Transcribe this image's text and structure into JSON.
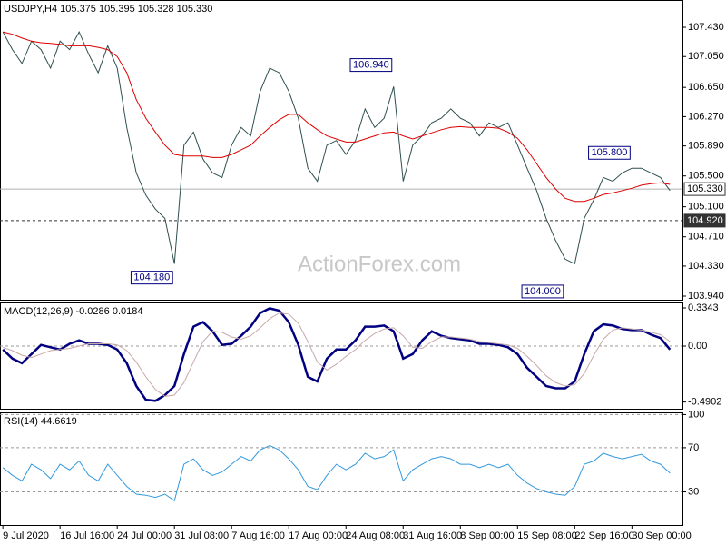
{
  "chart_data": [
    {
      "type": "line",
      "title": "USDJPY,H4  105.375 105.395 105.328 105.330",
      "watermark": "ActionForex.com",
      "xlim": [
        -0.3,
        71.3
      ],
      "ylim": [
        103.893,
        107.784
      ],
      "yticks": [
        {
          "value": 107.43,
          "label": "107.430"
        },
        {
          "value": 107.05,
          "label": "107.050"
        },
        {
          "value": 106.65,
          "label": "106.650"
        },
        {
          "value": 106.27,
          "label": "106.270"
        },
        {
          "value": 105.89,
          "label": "105.890"
        },
        {
          "value": 105.5,
          "label": "105.500"
        },
        {
          "value": 105.1,
          "label": "105.100"
        },
        {
          "value": 104.71,
          "label": "104.710"
        },
        {
          "value": 104.33,
          "label": "104.330"
        },
        {
          "value": 103.94,
          "label": "103.940"
        }
      ],
      "series": [
        {
          "color": "#2f4f4f",
          "width": 1,
          "values": [
            107.37,
            107.14,
            106.96,
            107.25,
            107.14,
            106.9,
            107.25,
            107.14,
            107.37,
            107.08,
            106.84,
            107.19,
            106.9,
            106.13,
            105.54,
            105.25,
            105.07,
            104.95,
            104.36,
            105.9,
            106.07,
            105.72,
            105.54,
            105.48,
            105.9,
            106.13,
            106.02,
            106.6,
            106.9,
            106.84,
            106.6,
            106.25,
            105.6,
            105.43,
            105.9,
            105.96,
            105.78,
            105.96,
            106.37,
            106.13,
            106.25,
            106.66,
            105.43,
            105.9,
            106.02,
            106.19,
            106.25,
            106.37,
            106.25,
            106.19,
            106.02,
            106.19,
            106.13,
            106.19,
            105.9,
            105.6,
            105.31,
            104.95,
            104.66,
            104.42,
            104.36,
            104.95,
            105.19,
            105.48,
            105.43,
            105.54,
            105.6,
            105.6,
            105.54,
            105.48,
            105.31
          ]
        },
        {
          "color": "#dd0000",
          "width": 1,
          "values": [
            107.37,
            107.34,
            107.29,
            107.25,
            107.23,
            107.22,
            107.21,
            107.19,
            107.19,
            107.19,
            107.17,
            107.14,
            107.05,
            106.84,
            106.49,
            106.25,
            106.07,
            105.9,
            105.78,
            105.76,
            105.76,
            105.76,
            105.74,
            105.74,
            105.78,
            105.84,
            105.9,
            106.02,
            106.13,
            106.23,
            106.3,
            106.3,
            106.19,
            106.1,
            106.02,
            105.98,
            105.94,
            105.94,
            105.98,
            106.02,
            106.06,
            106.07,
            106.02,
            105.98,
            106.02,
            106.06,
            106.1,
            106.13,
            106.14,
            106.13,
            106.13,
            106.13,
            106.12,
            106.07,
            105.99,
            105.84,
            105.66,
            105.48,
            105.33,
            105.21,
            105.17,
            105.17,
            105.21,
            105.26,
            105.28,
            105.31,
            105.34,
            105.38,
            105.4,
            105.41,
            105.39
          ]
        }
      ],
      "price_lines": [
        {
          "value": 105.33,
          "label": "105.330",
          "style": "solid"
        },
        {
          "value": 104.92,
          "label": "104.920",
          "style": "dashed"
        }
      ],
      "annotations": [
        {
          "index": 41,
          "value": 106.94,
          "label": "106.940"
        },
        {
          "index": 66,
          "value": 105.8,
          "label": "105.800"
        },
        {
          "index": 18,
          "value": 104.18,
          "label": "104.180"
        },
        {
          "index": 59,
          "value": 104.0,
          "label": "104.000"
        }
      ]
    },
    {
      "type": "line",
      "title": "MACD(12,26,9) -0.0286 0.0184",
      "xlim": [
        -0.3,
        71.3
      ],
      "ylim": [
        -0.549,
        0.382
      ],
      "yticks": [
        0.3343,
        {
          "value": 0,
          "label": "0.00"
        },
        -0.4902
      ],
      "zero_line": true,
      "series": [
        {
          "color": "#000080",
          "width": 2.5,
          "values": [
            -0.03,
            -0.11,
            -0.15,
            -0.07,
            0.01,
            -0.01,
            -0.03,
            0.02,
            0.05,
            0.02,
            0.02,
            0.01,
            -0.03,
            -0.15,
            -0.35,
            -0.47,
            -0.48,
            -0.43,
            -0.35,
            -0.07,
            0.17,
            0.21,
            0.13,
            0.01,
            0.02,
            0.09,
            0.17,
            0.29,
            0.33,
            0.31,
            0.21,
            0.01,
            -0.27,
            -0.31,
            -0.11,
            -0.03,
            -0.03,
            0.05,
            0.17,
            0.17,
            0.18,
            0.13,
            -0.11,
            -0.07,
            0.05,
            0.13,
            0.09,
            0.07,
            0.06,
            0.05,
            0.02,
            0.02,
            0.01,
            -0.01,
            -0.07,
            -0.19,
            -0.27,
            -0.35,
            -0.37,
            -0.37,
            -0.31,
            -0.07,
            0.13,
            0.19,
            0.18,
            0.15,
            0.14,
            0.14,
            0.1,
            0.07,
            -0.03
          ]
        },
        {
          "color": "#c8a8a8",
          "width": 1,
          "values": [
            -0.01,
            -0.04,
            -0.08,
            -0.1,
            -0.07,
            -0.04,
            -0.03,
            -0.02,
            0.0,
            0.02,
            0.02,
            0.02,
            0.01,
            -0.04,
            -0.14,
            -0.27,
            -0.38,
            -0.44,
            -0.43,
            -0.32,
            -0.14,
            0.04,
            0.13,
            0.12,
            0.08,
            0.06,
            0.09,
            0.16,
            0.24,
            0.29,
            0.28,
            0.2,
            0.04,
            -0.14,
            -0.21,
            -0.16,
            -0.09,
            -0.03,
            0.05,
            0.11,
            0.15,
            0.16,
            0.09,
            -0.01,
            -0.02,
            0.04,
            0.08,
            0.08,
            0.07,
            0.06,
            0.04,
            0.03,
            0.02,
            0.01,
            -0.02,
            -0.09,
            -0.17,
            -0.26,
            -0.32,
            -0.35,
            -0.34,
            -0.24,
            -0.08,
            0.06,
            0.14,
            0.16,
            0.15,
            0.14,
            0.12,
            0.1,
            0.04
          ]
        }
      ]
    },
    {
      "type": "line",
      "title": "RSI(14) 44.6619",
      "xlim": [
        -0.3,
        71.3
      ],
      "ylim": [
        0,
        102
      ],
      "yticks": [
        100,
        70,
        30
      ],
      "grid": true,
      "xticks": [
        {
          "value": 0,
          "label": "9 Jul 2020"
        },
        {
          "value": 6,
          "label": "16 Jul 16:00"
        },
        {
          "value": 12,
          "label": "24 Jul 00:00"
        },
        {
          "value": 18,
          "label": "31 Jul 08:00"
        },
        {
          "value": 24,
          "label": "7 Aug 16:00"
        },
        {
          "value": 30,
          "label": "17 Aug 00:00"
        },
        {
          "value": 36,
          "label": "24 Aug 08:00"
        },
        {
          "value": 42,
          "label": "31 Aug 16:00"
        },
        {
          "value": 48,
          "label": "8 Sep 00:00"
        },
        {
          "value": 54,
          "label": "15 Sep 08:00"
        },
        {
          "value": 60,
          "label": "22 Sep 16:00"
        },
        {
          "value": 66,
          "label": "30 Sep 00:00"
        }
      ],
      "series": [
        {
          "color": "#3399dd",
          "width": 1,
          "values": [
            52,
            45,
            40,
            55,
            50,
            42,
            55,
            50,
            58,
            45,
            40,
            55,
            45,
            35,
            28,
            27,
            25,
            28,
            22,
            55,
            60,
            50,
            45,
            48,
            55,
            62,
            58,
            68,
            72,
            68,
            60,
            50,
            35,
            32,
            45,
            55,
            50,
            55,
            65,
            60,
            62,
            68,
            40,
            50,
            55,
            60,
            62,
            60,
            55,
            55,
            52,
            55,
            52,
            55,
            45,
            38,
            33,
            30,
            28,
            27,
            35,
            55,
            58,
            65,
            62,
            60,
            62,
            64,
            58,
            55,
            47
          ]
        }
      ]
    }
  ]
}
